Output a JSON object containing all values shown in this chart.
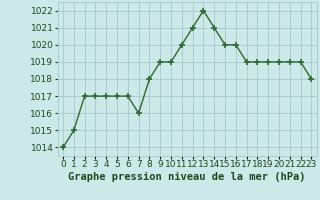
{
  "x": [
    0,
    1,
    2,
    3,
    4,
    5,
    6,
    7,
    8,
    9,
    10,
    11,
    12,
    13,
    14,
    15,
    16,
    17,
    18,
    19,
    20,
    21,
    22,
    23
  ],
  "y": [
    1014,
    1015,
    1017,
    1017,
    1017,
    1017,
    1017,
    1016,
    1018,
    1019,
    1019,
    1020,
    1021,
    1022,
    1021,
    1020,
    1020,
    1019,
    1019,
    1019,
    1019,
    1019,
    1019,
    1018
  ],
  "line_color": "#2d6a2d",
  "marker": "+",
  "marker_size": 4,
  "marker_linewidth": 1.2,
  "bg_color": "#cce8e8",
  "grid_color": "#aacccc",
  "xlabel": "Graphe pression niveau de la mer (hPa)",
  "xlabel_fontsize": 7.5,
  "xlabel_color": "#1a4a1a",
  "ylim": [
    1013.5,
    1022.5
  ],
  "xlim": [
    -0.5,
    23.5
  ],
  "yticks": [
    1014,
    1015,
    1016,
    1017,
    1018,
    1019,
    1020,
    1021,
    1022
  ],
  "xtick_labels": [
    "0",
    "1",
    "2",
    "3",
    "4",
    "5",
    "6",
    "7",
    "8",
    "9",
    "10",
    "11",
    "12",
    "13",
    "14",
    "15",
    "16",
    "17",
    "18",
    "19",
    "20",
    "21",
    "22",
    "23"
  ],
  "tick_fontsize": 6.5,
  "tick_color": "#1a4a1a",
  "line_width": 1.0
}
